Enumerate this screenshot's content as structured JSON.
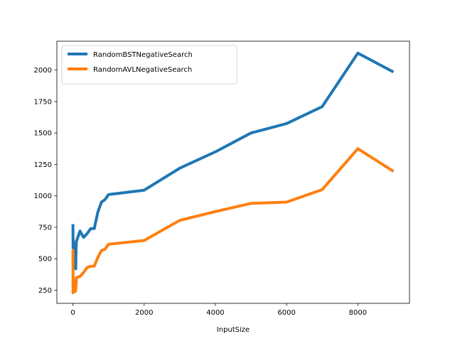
{
  "chart_data": {
    "type": "line",
    "title": "",
    "xlabel": "InputSize",
    "ylabel": "",
    "xlim": [
      -450,
      9450
    ],
    "ylim": [
      145,
      2230
    ],
    "xticks": [
      0,
      2000,
      4000,
      6000,
      8000
    ],
    "xtick_labels": [
      "0",
      "2000",
      "4000",
      "6000",
      "8000"
    ],
    "yticks": [
      250,
      500,
      750,
      1000,
      1250,
      1500,
      1750,
      2000
    ],
    "ytick_labels": [
      "250",
      "500",
      "750",
      "1000",
      "1250",
      "1500",
      "1750",
      "2000"
    ],
    "grid": false,
    "legend_position": "upper-left",
    "series": [
      {
        "name": "RandomBSTNegativeSearch",
        "color": "#1f77b4",
        "x": [
          1,
          5,
          10,
          20,
          30,
          40,
          50,
          60,
          70,
          80,
          90,
          100,
          200,
          300,
          400,
          500,
          600,
          700,
          800,
          900,
          1000,
          2000,
          3000,
          4000,
          5000,
          6000,
          7000,
          8000,
          9000
        ],
        "y": [
          775,
          590,
          650,
          600,
          500,
          560,
          520,
          480,
          450,
          420,
          600,
          640,
          720,
          670,
          700,
          740,
          740,
          870,
          950,
          970,
          1010,
          1045,
          1220,
          1350,
          1500,
          1575,
          1710,
          2135,
          1985
        ]
      },
      {
        "name": "RandomAVLNegativeSearch",
        "color": "#ff7f0e",
        "x": [
          1,
          5,
          10,
          20,
          30,
          40,
          50,
          60,
          70,
          80,
          90,
          100,
          200,
          300,
          400,
          500,
          600,
          700,
          800,
          900,
          1000,
          2000,
          3000,
          4000,
          5000,
          6000,
          7000,
          8000,
          9000
        ],
        "y": [
          575,
          230,
          350,
          280,
          330,
          270,
          250,
          245,
          240,
          250,
          300,
          350,
          360,
          390,
          430,
          440,
          440,
          510,
          565,
          575,
          615,
          645,
          805,
          875,
          940,
          950,
          1050,
          1375,
          1195
        ]
      }
    ]
  }
}
